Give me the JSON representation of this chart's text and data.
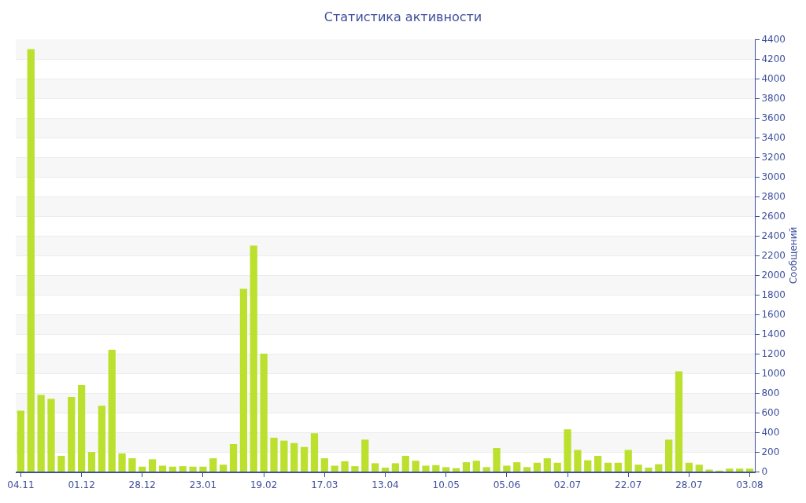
{
  "chart_data": {
    "type": "bar",
    "title": "Статистика активности",
    "ylabel": "Сообщений",
    "categories": [
      "04.11",
      null,
      null,
      null,
      null,
      null,
      "01.12",
      null,
      null,
      null,
      null,
      null,
      "28.12",
      null,
      null,
      null,
      null,
      null,
      "23.01",
      null,
      null,
      null,
      null,
      null,
      "19.02",
      null,
      null,
      null,
      null,
      null,
      "17.03",
      null,
      null,
      null,
      null,
      null,
      "13.04",
      null,
      null,
      null,
      null,
      null,
      "10.05",
      null,
      null,
      null,
      null,
      null,
      "05.06",
      null,
      null,
      null,
      null,
      null,
      "02.07",
      null,
      null,
      null,
      null,
      null,
      "22.07",
      null,
      null,
      null,
      null,
      null,
      "28.07",
      null,
      null,
      null,
      null,
      null,
      "03.08"
    ],
    "values": [
      620,
      4300,
      780,
      740,
      160,
      760,
      880,
      200,
      670,
      1240,
      185,
      135,
      50,
      125,
      60,
      50,
      55,
      50,
      50,
      135,
      70,
      280,
      1860,
      2300,
      1200,
      345,
      315,
      290,
      250,
      390,
      135,
      60,
      105,
      55,
      325,
      85,
      40,
      85,
      160,
      110,
      60,
      65,
      45,
      35,
      95,
      110,
      45,
      240,
      60,
      95,
      45,
      90,
      135,
      90,
      430,
      220,
      115,
      160,
      90,
      90,
      220,
      70,
      40,
      75,
      325,
      1020,
      90,
      70,
      20,
      10,
      30,
      30,
      30
    ],
    "color": "#bbe02e",
    "ylim": [
      0,
      4400
    ],
    "yticks": [
      0,
      200,
      400,
      600,
      800,
      1000,
      1200,
      1400,
      1600,
      1800,
      2000,
      2200,
      2400,
      2600,
      2800,
      3000,
      3200,
      3400,
      3600,
      3800,
      4000,
      4200,
      4400
    ],
    "grid": "y"
  }
}
